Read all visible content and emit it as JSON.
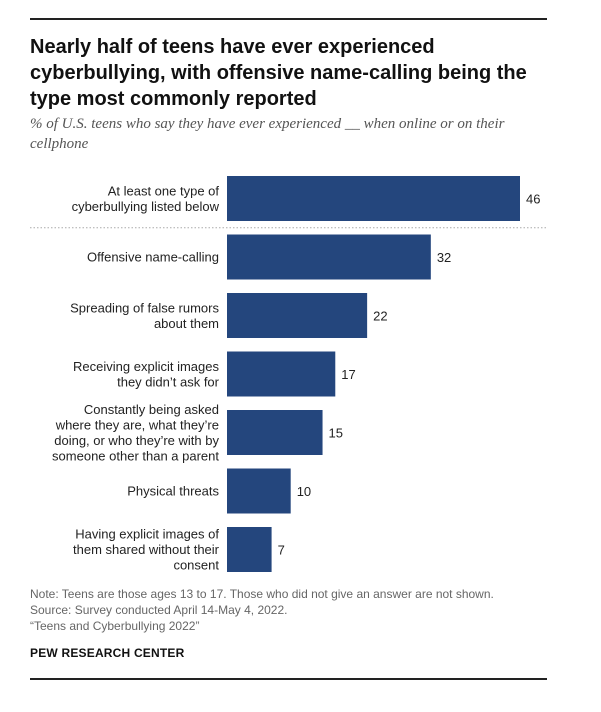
{
  "title": "Nearly half of teens have ever experienced cyberbullying, with offensive name-calling being the type most commonly reported",
  "subtitle": "% of U.S. teens who say they have ever experienced __ when online or on their cellphone",
  "notes": {
    "note": "Note: Teens are those ages 13 to 17. Those who did not give an answer are not shown.",
    "source": "Source: Survey conducted April 14-May 4, 2022.",
    "report": "“Teens and Cyberbullying 2022”"
  },
  "org": "PEW RESEARCH CENTER",
  "colors": {
    "bar": "#24467d",
    "divider": "#aaaaaa",
    "rule": "#222222"
  },
  "chart_data": {
    "type": "bar",
    "orientation": "horizontal",
    "categories": [
      [
        "At least one type of",
        "cyberbullying listed below"
      ],
      [
        "Offensive name-calling"
      ],
      [
        "Spreading of false rumors",
        "about them"
      ],
      [
        "Receiving explicit images",
        "they didn’t ask for"
      ],
      [
        "Constantly being asked",
        "where they are, what they’re",
        "doing, or who they’re with by",
        "someone other than a parent"
      ],
      [
        "Physical threats"
      ],
      [
        "Having explicit images of",
        "them shared without their",
        "consent"
      ]
    ],
    "values": [
      46,
      32,
      22,
      17,
      15,
      10,
      7
    ],
    "xlim": [
      0,
      46
    ],
    "grid": false,
    "legend": "none"
  }
}
